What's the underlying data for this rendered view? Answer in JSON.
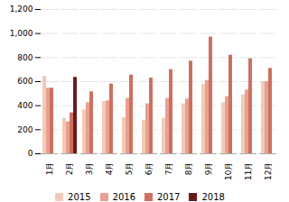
{
  "chart_data": {
    "type": "bar",
    "categories": [
      "1月",
      "2月",
      "3月",
      "4月",
      "5月",
      "6月",
      "7月",
      "8月",
      "9月",
      "10月",
      "11月",
      "12月"
    ],
    "series": [
      {
        "name": "2015",
        "color": "#f2cbb8",
        "values": [
          645,
          295,
          365,
          435,
          300,
          280,
          295,
          415,
          575,
          425,
          490,
          600
        ]
      },
      {
        "name": "2016",
        "color": "#e8a090",
        "values": [
          545,
          265,
          425,
          440,
          460,
          415,
          460,
          455,
          610,
          475,
          530,
          600
        ]
      },
      {
        "name": "2017",
        "color": "#cc7060",
        "values": [
          545,
          340,
          515,
          580,
          655,
          630,
          700,
          770,
          970,
          820,
          790,
          710
        ]
      },
      {
        "name": "2018",
        "color": "#6b1a1a",
        "values": [
          null,
          635,
          null,
          null,
          null,
          null,
          null,
          null,
          null,
          null,
          null,
          null
        ]
      }
    ],
    "ylim": [
      0,
      1200
    ],
    "yticks": [
      0,
      200,
      400,
      600,
      800,
      {
        "value": 1000,
        "label": "1,000"
      },
      {
        "value": 1200,
        "label": "1,200"
      }
    ],
    "grid": true,
    "legend": "bottom"
  }
}
